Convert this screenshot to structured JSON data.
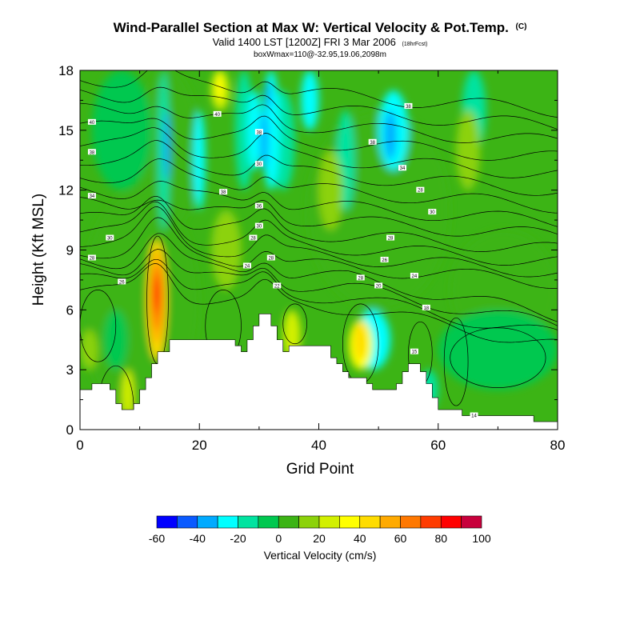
{
  "chart_data": {
    "type": "heatmap",
    "title": "Wind-Parallel Section at Max W: Vertical Velocity & Pot.Temp.",
    "title_mark": "(C)",
    "subtitle": "Valid 1400 LST [1200Z] FRI 3 Mar 2006",
    "subtitle_note": "(18hrFcst)",
    "subtitle2": "boxWmax=110@-32.95,19.06,2098m",
    "xlabel": "Grid Point",
    "ylabel": "Height (Kft MSL)",
    "xlim": [
      0,
      80
    ],
    "ylim": [
      0,
      18
    ],
    "xticks": [
      "0",
      "20",
      "40",
      "60",
      "80"
    ],
    "yticks": [
      "0",
      "3",
      "6",
      "9",
      "12",
      "15",
      "18"
    ],
    "colorbar": {
      "label": "Vertical Velocity (cm/s)",
      "levels": [
        -60,
        -50,
        -40,
        -30,
        -20,
        -10,
        0,
        10,
        20,
        30,
        40,
        50,
        60,
        70,
        80,
        90,
        100
      ],
      "tick_labels": [
        "-60",
        "-40",
        "-20",
        "0",
        "20",
        "40",
        "60",
        "80",
        "100"
      ],
      "colors": [
        "#0000ff",
        "#0a5aff",
        "#00aaff",
        "#00ffff",
        "#00e3a0",
        "#00c850",
        "#3cb415",
        "#8cd20a",
        "#d2f000",
        "#ffff00",
        "#ffdc00",
        "#ffaa00",
        "#ff7800",
        "#ff3c00",
        "#ff0000",
        "#c8003c"
      ]
    },
    "terrain_kft": [
      [
        0,
        2.0
      ],
      [
        2,
        2.0
      ],
      [
        2,
        2.3
      ],
      [
        5,
        2.3
      ],
      [
        5,
        2.0
      ],
      [
        6,
        2.0
      ],
      [
        6,
        1.3
      ],
      [
        7,
        1.3
      ],
      [
        7,
        1.0
      ],
      [
        9,
        1.0
      ],
      [
        9,
        1.3
      ],
      [
        10,
        1.3
      ],
      [
        10,
        2.0
      ],
      [
        11,
        2.0
      ],
      [
        11,
        2.6
      ],
      [
        12,
        2.6
      ],
      [
        12,
        3.3
      ],
      [
        13,
        3.3
      ],
      [
        13,
        3.9
      ],
      [
        15,
        3.9
      ],
      [
        15,
        4.5
      ],
      [
        26,
        4.5
      ],
      [
        26,
        4.2
      ],
      [
        27,
        4.2
      ],
      [
        27,
        3.9
      ],
      [
        28,
        3.9
      ],
      [
        28,
        4.5
      ],
      [
        29,
        4.5
      ],
      [
        29,
        5.2
      ],
      [
        30,
        5.2
      ],
      [
        30,
        5.8
      ],
      [
        32,
        5.8
      ],
      [
        32,
        5.2
      ],
      [
        33,
        5.2
      ],
      [
        33,
        4.5
      ],
      [
        34,
        4.5
      ],
      [
        34,
        3.9
      ],
      [
        35,
        3.9
      ],
      [
        35,
        4.2
      ],
      [
        42,
        4.2
      ],
      [
        42,
        3.6
      ],
      [
        43,
        3.6
      ],
      [
        43,
        3.3
      ],
      [
        44,
        3.3
      ],
      [
        44,
        2.9
      ],
      [
        45,
        2.9
      ],
      [
        45,
        2.6
      ],
      [
        48,
        2.6
      ],
      [
        48,
        2.3
      ],
      [
        49,
        2.3
      ],
      [
        49,
        2.0
      ],
      [
        53,
        2.0
      ],
      [
        53,
        2.3
      ],
      [
        54,
        2.3
      ],
      [
        54,
        2.9
      ],
      [
        55,
        2.9
      ],
      [
        55,
        3.3
      ],
      [
        57,
        3.3
      ],
      [
        57,
        2.9
      ],
      [
        58,
        2.9
      ],
      [
        58,
        2.3
      ],
      [
        59,
        2.3
      ],
      [
        59,
        1.6
      ],
      [
        60,
        1.6
      ],
      [
        60,
        1.0
      ],
      [
        64,
        1.0
      ],
      [
        64,
        0.7
      ],
      [
        76,
        0.7
      ],
      [
        76,
        0.4
      ],
      [
        80,
        0.4
      ]
    ],
    "theta_contour_labels": [
      {
        "text": "40",
        "x": 2,
        "y": 15.4
      },
      {
        "text": "38",
        "x": 2,
        "y": 13.9
      },
      {
        "text": "34",
        "x": 2,
        "y": 11.7
      },
      {
        "text": "30",
        "x": 5,
        "y": 9.6
      },
      {
        "text": "28",
        "x": 2,
        "y": 8.6
      },
      {
        "text": "26",
        "x": 7,
        "y": 7.4
      },
      {
        "text": "40",
        "x": 23,
        "y": 15.8
      },
      {
        "text": "38",
        "x": 24,
        "y": 11.9
      },
      {
        "text": "24",
        "x": 28,
        "y": 8.2
      },
      {
        "text": "38",
        "x": 30,
        "y": 14.9
      },
      {
        "text": "30",
        "x": 30,
        "y": 13.3
      },
      {
        "text": "36",
        "x": 30,
        "y": 11.2
      },
      {
        "text": "30",
        "x": 30,
        "y": 10.2
      },
      {
        "text": "28",
        "x": 29,
        "y": 9.6
      },
      {
        "text": "28",
        "x": 32,
        "y": 8.6
      },
      {
        "text": "22",
        "x": 33,
        "y": 7.2
      },
      {
        "text": "38",
        "x": 55,
        "y": 16.2
      },
      {
        "text": "38",
        "x": 49,
        "y": 14.4
      },
      {
        "text": "34",
        "x": 54,
        "y": 13.1
      },
      {
        "text": "28",
        "x": 57,
        "y": 12.0
      },
      {
        "text": "30",
        "x": 59,
        "y": 10.9
      },
      {
        "text": "28",
        "x": 52,
        "y": 9.6
      },
      {
        "text": "26",
        "x": 51,
        "y": 8.5
      },
      {
        "text": "28",
        "x": 47,
        "y": 7.6
      },
      {
        "text": "24",
        "x": 56,
        "y": 7.7
      },
      {
        "text": "20",
        "x": 50,
        "y": 7.2
      },
      {
        "text": "18",
        "x": 58,
        "y": 6.1
      },
      {
        "text": "15",
        "x": 56,
        "y": 3.9
      },
      {
        "text": "14",
        "x": 66,
        "y": 0.7
      }
    ]
  }
}
